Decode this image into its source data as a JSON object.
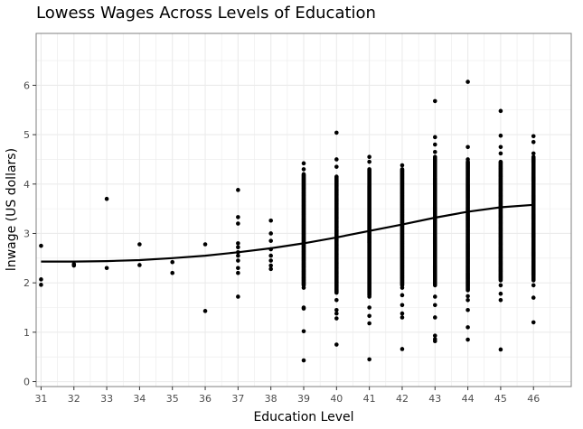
{
  "chart_data": {
    "type": "scatter",
    "title": "Lowess Wages Across Levels of Education",
    "xlabel": "Education Level",
    "ylabel": "lnwage (US dollars)",
    "xlim": [
      30.85,
      47.15
    ],
    "ylim": [
      -0.1,
      7.05
    ],
    "x_ticks": [
      31,
      32,
      33,
      34,
      35,
      36,
      37,
      38,
      39,
      40,
      41,
      42,
      43,
      44,
      45,
      46
    ],
    "y_ticks": [
      0,
      1,
      2,
      3,
      4,
      5,
      6
    ],
    "grid": true,
    "colors": {
      "points": "#000000",
      "line": "#000000",
      "grid": "#ebebeb",
      "panel_border": "#7f7f7f"
    },
    "series": [
      {
        "type": "scatter",
        "points": [
          [
            31,
            2.75
          ],
          [
            31,
            2.07
          ],
          [
            31,
            1.96
          ],
          [
            32,
            2.38
          ],
          [
            32,
            2.35
          ],
          [
            33,
            3.7
          ],
          [
            33,
            2.3
          ],
          [
            34,
            2.78
          ],
          [
            34,
            2.36
          ],
          [
            35,
            2.42
          ],
          [
            35,
            2.2
          ],
          [
            36,
            2.78
          ],
          [
            36,
            1.43
          ],
          [
            37,
            3.88
          ],
          [
            37,
            3.33
          ],
          [
            37,
            3.2
          ],
          [
            37,
            2.8
          ],
          [
            37,
            2.72
          ],
          [
            37,
            2.62
          ],
          [
            37,
            2.55
          ],
          [
            37,
            2.45
          ],
          [
            37,
            2.3
          ],
          [
            37,
            2.2
          ],
          [
            37,
            1.72
          ],
          [
            38,
            3.26
          ],
          [
            38,
            3.0
          ],
          [
            38,
            2.85
          ],
          [
            38,
            2.68
          ],
          [
            38,
            2.55
          ],
          [
            38,
            2.45
          ],
          [
            38,
            2.35
          ],
          [
            38,
            2.28
          ],
          [
            39,
            4.42
          ],
          [
            39,
            4.3
          ],
          [
            39,
            1.9
          ],
          [
            39,
            1.5
          ],
          [
            39,
            1.48
          ],
          [
            39,
            1.02
          ],
          [
            39,
            0.43
          ],
          [
            40,
            5.04
          ],
          [
            40,
            4.5
          ],
          [
            40,
            4.35
          ],
          [
            40,
            1.8
          ],
          [
            40,
            1.65
          ],
          [
            40,
            1.45
          ],
          [
            40,
            1.38
          ],
          [
            40,
            1.28
          ],
          [
            40,
            0.75
          ],
          [
            41,
            4.55
          ],
          [
            41,
            4.45
          ],
          [
            41,
            1.72
          ],
          [
            41,
            1.5
          ],
          [
            41,
            1.33
          ],
          [
            41,
            1.18
          ],
          [
            41,
            0.45
          ],
          [
            42,
            4.38
          ],
          [
            42,
            1.9
          ],
          [
            42,
            1.75
          ],
          [
            42,
            1.55
          ],
          [
            42,
            1.38
          ],
          [
            42,
            1.3
          ],
          [
            42,
            0.66
          ],
          [
            43,
            5.68
          ],
          [
            43,
            4.95
          ],
          [
            43,
            4.8
          ],
          [
            43,
            4.65
          ],
          [
            43,
            1.72
          ],
          [
            43,
            1.55
          ],
          [
            43,
            1.3
          ],
          [
            43,
            0.93
          ],
          [
            43,
            0.86
          ],
          [
            43,
            0.82
          ],
          [
            44,
            6.07
          ],
          [
            44,
            4.75
          ],
          [
            44,
            4.5
          ],
          [
            44,
            1.73
          ],
          [
            44,
            1.65
          ],
          [
            44,
            1.45
          ],
          [
            44,
            1.1
          ],
          [
            44,
            0.85
          ],
          [
            45,
            5.48
          ],
          [
            45,
            4.98
          ],
          [
            45,
            4.75
          ],
          [
            45,
            4.62
          ],
          [
            45,
            1.95
          ],
          [
            45,
            1.78
          ],
          [
            45,
            1.65
          ],
          [
            45,
            0.65
          ],
          [
            46,
            4.97
          ],
          [
            46,
            4.85
          ],
          [
            46,
            4.62
          ],
          [
            46,
            1.95
          ],
          [
            46,
            1.7
          ],
          [
            46,
            1.2
          ]
        ],
        "dense_columns": [
          {
            "x": 39,
            "range": [
              1.95,
              4.2
            ]
          },
          {
            "x": 40,
            "range": [
              1.82,
              4.15
            ]
          },
          {
            "x": 41,
            "range": [
              1.75,
              4.3
            ]
          },
          {
            "x": 42,
            "range": [
              1.95,
              4.3
            ]
          },
          {
            "x": 43,
            "range": [
              1.95,
              4.55
            ]
          },
          {
            "x": 44,
            "range": [
              1.85,
              4.45
            ]
          },
          {
            "x": 45,
            "range": [
              2.05,
              4.45
            ]
          },
          {
            "x": 46,
            "range": [
              2.05,
              4.55
            ]
          }
        ]
      },
      {
        "type": "line",
        "x": [
          31,
          32,
          33,
          34,
          35,
          36,
          37,
          38,
          39,
          40,
          41,
          42,
          43,
          44,
          45,
          46
        ],
        "y": [
          2.43,
          2.43,
          2.44,
          2.46,
          2.5,
          2.55,
          2.62,
          2.7,
          2.8,
          2.92,
          3.05,
          3.18,
          3.32,
          3.44,
          3.53,
          3.58
        ]
      }
    ]
  }
}
